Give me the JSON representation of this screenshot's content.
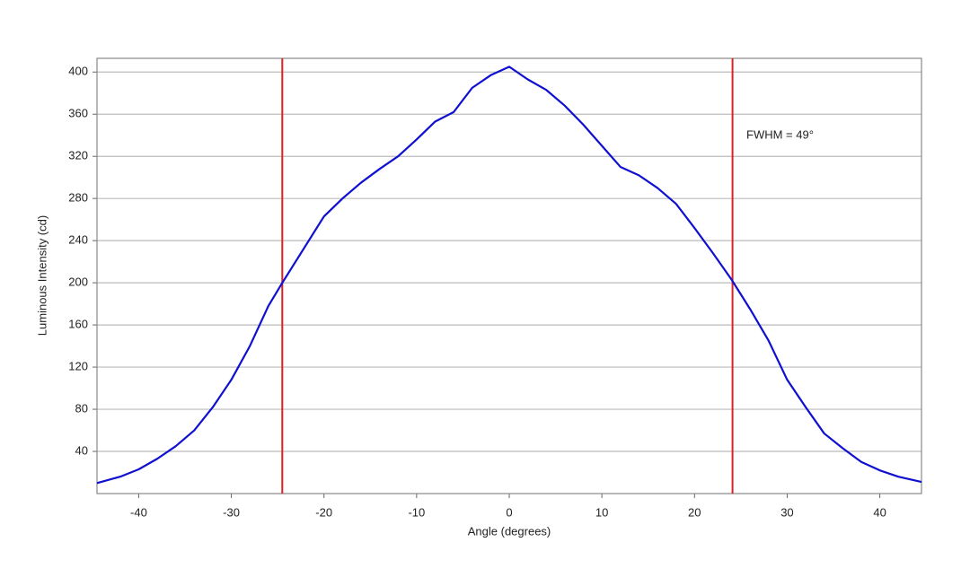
{
  "chart_data": {
    "type": "line",
    "x_label": "Angle (degrees)",
    "y_label": "Luminous Intensity (cd)",
    "annotation": "FWHM = 49°",
    "x": [
      -44.5,
      -42,
      -40,
      -38,
      -36,
      -34,
      -32,
      -30,
      -28,
      -26,
      -24.5,
      -22,
      -20,
      -18,
      -16,
      -14,
      -12,
      -10,
      -8,
      -6,
      -4,
      -2,
      0,
      2,
      4,
      6,
      8,
      10,
      12,
      14,
      16,
      18,
      20,
      22,
      24,
      26,
      28,
      30,
      32,
      34,
      36,
      38,
      40,
      42,
      44.5
    ],
    "series": [
      {
        "color": "#1010d0",
        "values": [
          10,
          16,
          23,
          33,
          45,
          60,
          82,
          108,
          140,
          178,
          200,
          235,
          263,
          280,
          295,
          308,
          320,
          336,
          353,
          362,
          385,
          397,
          405,
          393,
          383,
          368,
          350,
          330,
          310,
          302,
          290,
          275,
          252,
          228,
          203,
          175,
          145,
          108,
          82,
          57,
          43,
          30,
          22,
          16,
          11
        ]
      }
    ],
    "vlines": [
      -24.5,
      24.1
    ],
    "vline_color": "#e02020",
    "xlim": [
      -44.5,
      44.5
    ],
    "ylim": [
      0,
      413
    ],
    "xticks": [
      -40,
      -30,
      -20,
      -10,
      0,
      10,
      20,
      30,
      40
    ],
    "yticks": [
      40,
      80,
      120,
      160,
      200,
      240,
      280,
      320,
      360,
      400
    ],
    "grid": true
  }
}
